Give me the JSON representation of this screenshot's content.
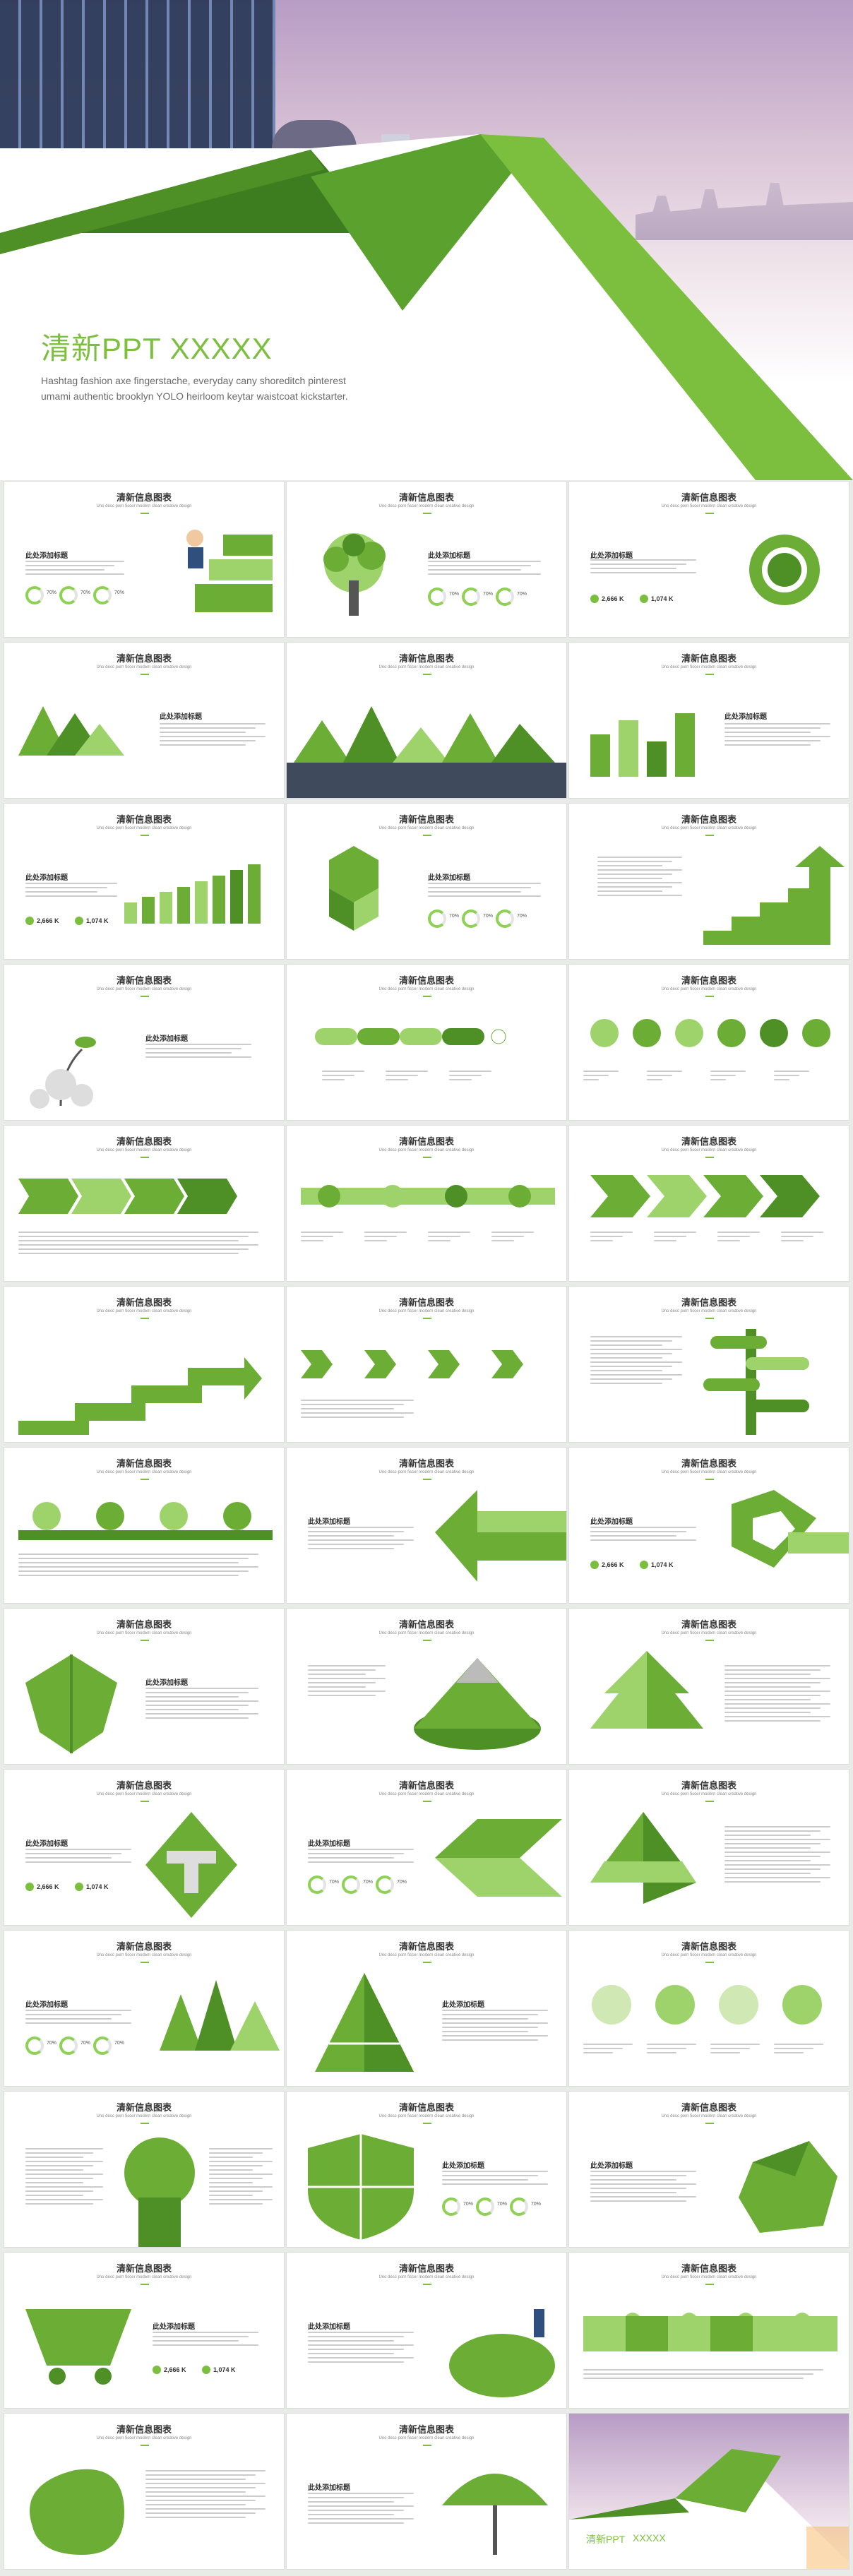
{
  "cover": {
    "title": "清新PPT     XXXXX",
    "subtitle": "Hashtag fashion axe fingerstache, everyday cany shoreditch pinterest umami authentic brooklyn YOLO heirloom keytar waistcoat kickstarter."
  },
  "card": {
    "heading": "清新信息图表",
    "subheading": "Uno desc porn fiscer modern clean creative design",
    "section": "此处添加标题",
    "stat_a": "2,666 K",
    "stat_b": "1,074 K",
    "pct": "70%",
    "pct_label": "Type"
  },
  "footer": {
    "title": "清新PPT",
    "suffix": "XXXXX"
  },
  "colors": {
    "green": "#7cbf3f",
    "dark_green": "#4e8f26"
  }
}
